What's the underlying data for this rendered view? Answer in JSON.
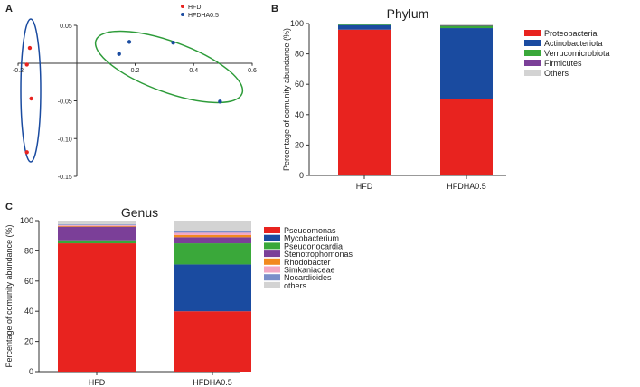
{
  "panels": {
    "a": "A",
    "b": "B",
    "c": "C"
  },
  "chart_data": [
    {
      "type": "scatter",
      "xlim": [
        -0.2,
        0.6
      ],
      "ylim": [
        -0.15,
        0.05
      ],
      "xticks": [
        {
          "v": -0.2,
          "label": "-0.2"
        },
        {
          "v": 0.2,
          "label": "0.2"
        },
        {
          "v": 0.4,
          "label": "0.4"
        },
        {
          "v": 0.6,
          "label": "0.6"
        }
      ],
      "yticks": [
        {
          "v": 0.05,
          "label": "0.05"
        },
        {
          "v": -0.05,
          "label": "-0.05"
        },
        {
          "v": -0.1,
          "label": "-0.10"
        },
        {
          "v": -0.15,
          "label": "-0.15"
        }
      ],
      "legend_position": "top-center",
      "series": [
        {
          "name": "HFD",
          "color": "#e8231f",
          "points": [
            {
              "x": -0.16,
              "y": 0.02
            },
            {
              "x": -0.17,
              "y": -0.002
            },
            {
              "x": -0.155,
              "y": -0.047
            },
            {
              "x": -0.17,
              "y": -0.118
            }
          ]
        },
        {
          "name": "HFDHA0.5",
          "color": "#1a4ba0",
          "points": [
            {
              "x": 0.145,
              "y": 0.012
            },
            {
              "x": 0.18,
              "y": 0.028
            },
            {
              "x": 0.33,
              "y": 0.027
            },
            {
              "x": 0.49,
              "y": -0.051
            }
          ]
        }
      ]
    },
    {
      "type": "bar",
      "stacked": true,
      "title": "Phylum",
      "ylabel": "Percentage of  comunity abundance (%)",
      "ylim": [
        0,
        100
      ],
      "yticks": [
        0,
        20,
        40,
        60,
        80,
        100
      ],
      "categories": [
        "HFD",
        "HFDHA0.5"
      ],
      "legend_position": "right",
      "series": [
        {
          "name": "Proteobacteria",
          "color": "#e8231f",
          "values": [
            96,
            50
          ]
        },
        {
          "name": "Actinobacteriota",
          "color": "#1a4ba0",
          "values": [
            3,
            47
          ]
        },
        {
          "name": "Verrucomicrobiota",
          "color": "#3aa83a",
          "values": [
            0.5,
            1.5
          ]
        },
        {
          "name": "Firmicutes",
          "color": "#7b3f98",
          "values": [
            0.2,
            0.3
          ]
        },
        {
          "name": "Others",
          "color": "#d3d3d3",
          "values": [
            0.3,
            1.2
          ]
        }
      ]
    },
    {
      "type": "bar",
      "stacked": true,
      "title": "Genus",
      "ylabel": "Percentage of  comunity abundance (%)",
      "ylim": [
        0,
        100
      ],
      "yticks": [
        0,
        20,
        40,
        60,
        80,
        100
      ],
      "categories": [
        "HFD",
        "HFDHA0.5"
      ],
      "legend_position": "right",
      "series": [
        {
          "name": "Pseudomonas",
          "color": "#e8231f",
          "values": [
            85,
            40
          ]
        },
        {
          "name": "Mycobacterium",
          "color": "#1a4ba0",
          "values": [
            0,
            31
          ]
        },
        {
          "name": "Pseudonocardia",
          "color": "#3aa83a",
          "values": [
            2,
            14
          ]
        },
        {
          "name": "Stenotrophomonas",
          "color": "#7b3f98",
          "values": [
            9,
            4
          ]
        },
        {
          "name": "Rhodobacter",
          "color": "#f28a1f",
          "values": [
            0.5,
            1.5
          ]
        },
        {
          "name": "Simkaniaceae",
          "color": "#f2a7c3",
          "values": [
            0.5,
            1.5
          ]
        },
        {
          "name": "Nocardioides",
          "color": "#7b8fc9",
          "values": [
            0.5,
            1
          ]
        },
        {
          "name": "others",
          "color": "#d3d3d3",
          "values": [
            2.5,
            7
          ]
        }
      ]
    }
  ]
}
